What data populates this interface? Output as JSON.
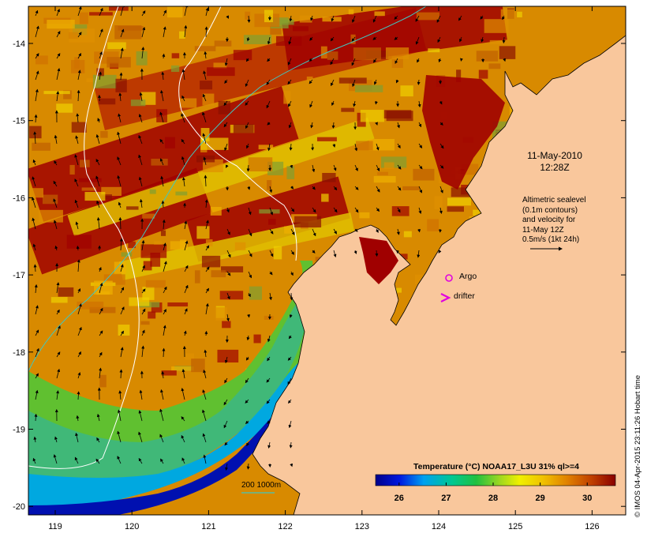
{
  "map": {
    "date": "11-May-2010",
    "time": "12:28Z",
    "altimetry_lines": [
      "Altimetric sealevel",
      "(0.1m contours)",
      "and velocity for",
      "11-May 12Z",
      "0.5m/s (1kt 24h)"
    ],
    "argo_label": "Argo",
    "drifter_label": "drifter",
    "depth_contour_label": "200  1000m",
    "credit": "© IMOS 04-Apr-2015 23:11:26 Hobart time",
    "x_ticks": [
      "119",
      "120",
      "121",
      "122",
      "123",
      "124",
      "125",
      "126"
    ],
    "y_ticks": [
      "-14",
      "-15",
      "-16",
      "-17",
      "-18",
      "-19",
      "-20"
    ],
    "colorbar": {
      "title": "Temperature (°C) NOAA17_L3U 31% ql>=4",
      "ticks": [
        "26",
        "27",
        "28",
        "29",
        "30"
      ],
      "min": 25.5,
      "max": 30.6
    },
    "colors": {
      "land": "#f9c79c",
      "depth_200m": "#40c8c0",
      "depth_1000m": "#ffffff",
      "argo_marker": "#e000e0",
      "drifter_marker": "#e000e0"
    }
  }
}
